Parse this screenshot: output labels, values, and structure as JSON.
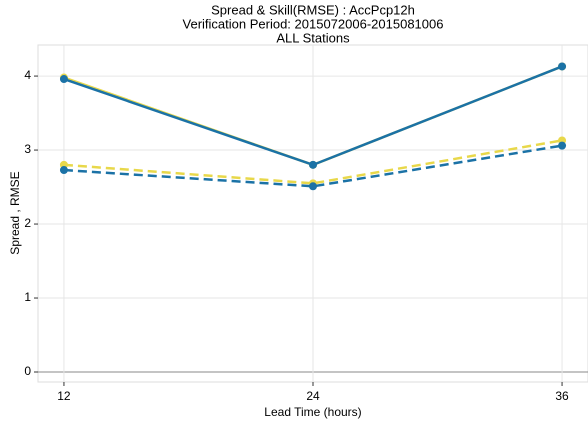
{
  "chart_data": {
    "type": "line",
    "title": [
      "Spread & Skill(RMSE) : AccPcp12h",
      "Verification Period: 2015072006-2015081006",
      "ALL Stations"
    ],
    "xlabel": "Lead Time (hours)",
    "ylabel": "Spread , RMSE",
    "x": [
      12,
      24,
      36
    ],
    "series": [
      {
        "color": "#e8d84a",
        "dash": false,
        "values": [
          3.98,
          2.8,
          4.13
        ]
      },
      {
        "color": "#1b72a6",
        "dash": false,
        "values": [
          3.96,
          2.8,
          4.13
        ]
      },
      {
        "color": "#e8d84a",
        "dash": true,
        "values": [
          2.8,
          2.55,
          3.13
        ]
      },
      {
        "color": "#1b72a6",
        "dash": true,
        "values": [
          2.73,
          2.51,
          3.06
        ]
      }
    ],
    "xlim": [
      10.75,
      37.25
    ],
    "xticks": [
      12,
      24,
      36
    ],
    "ylim": [
      -0.135,
      4.42
    ],
    "yticks": [
      0,
      1,
      2,
      3,
      4
    ],
    "grid": true
  }
}
